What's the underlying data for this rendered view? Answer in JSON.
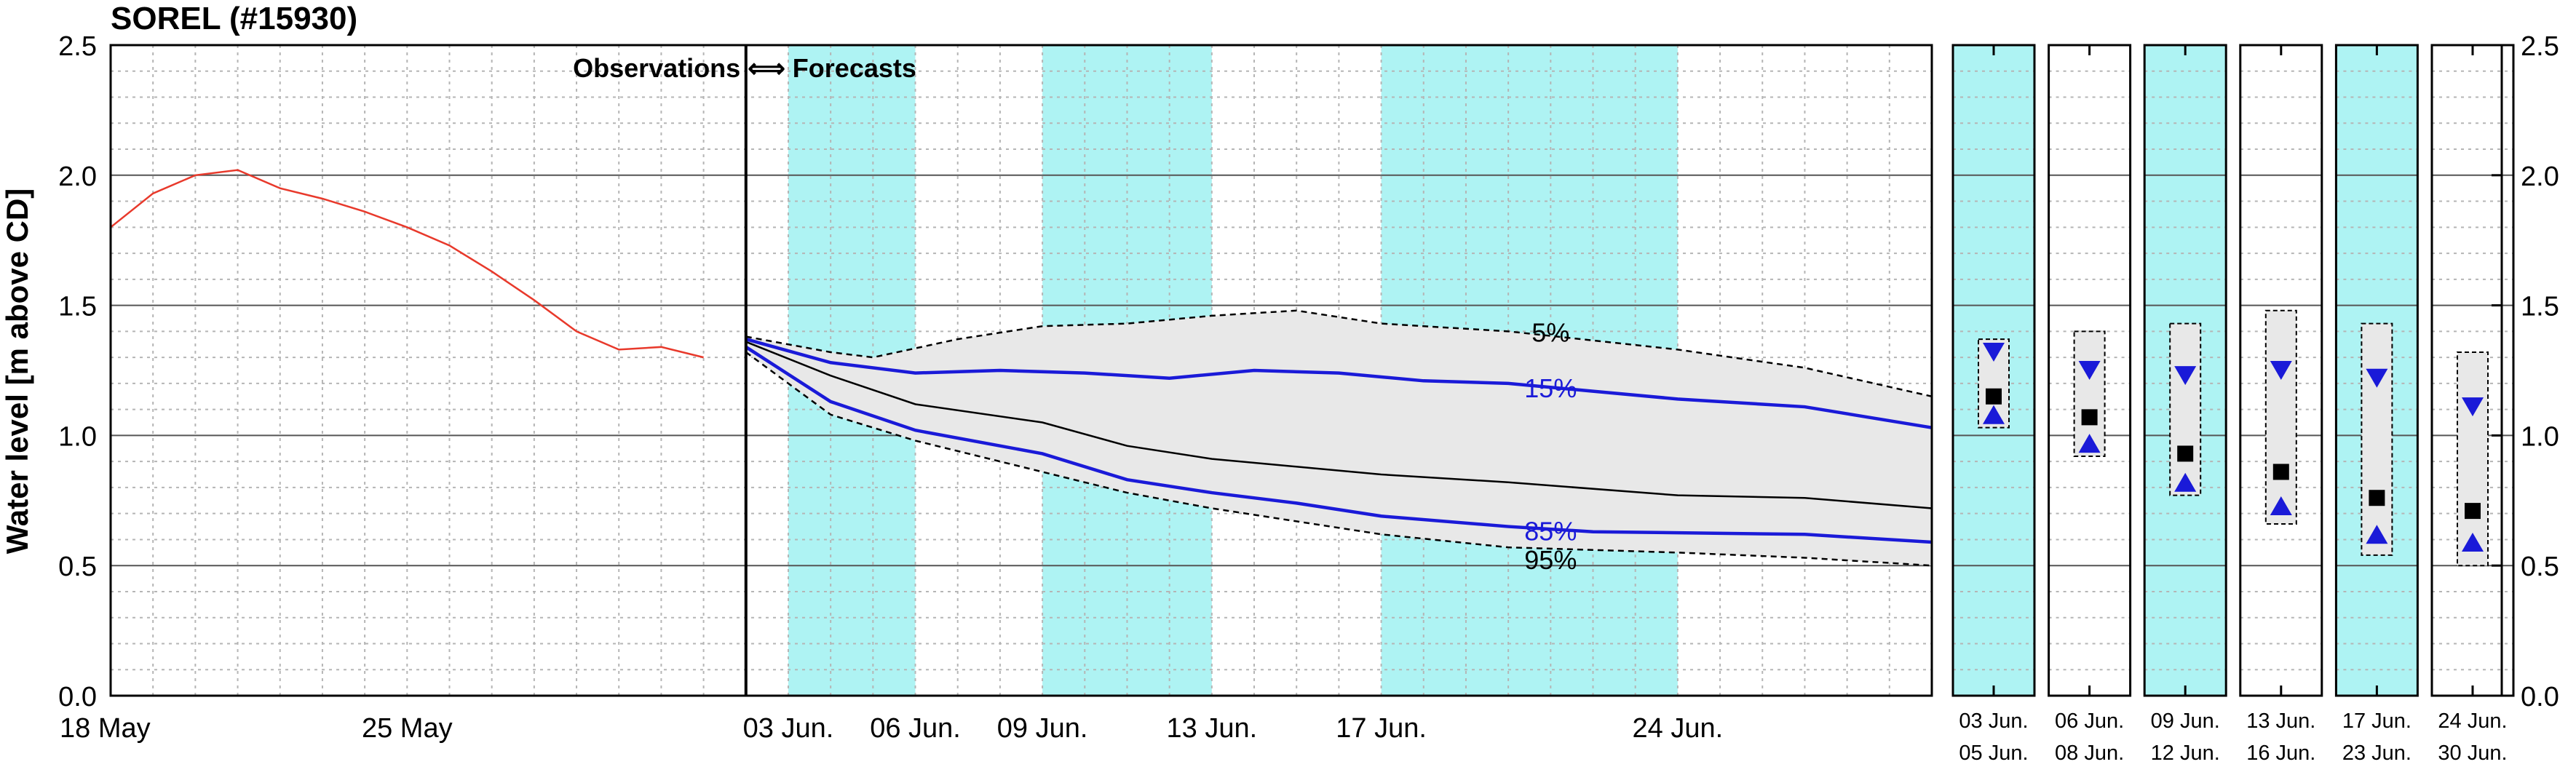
{
  "chart_data": {
    "type": "line",
    "title": "SOREL (#15930)",
    "ylabel": "Water level [m above CD]",
    "ylim": [
      0,
      2.5
    ],
    "yticks": [
      "0.0",
      "0.5",
      "1.0",
      "1.5",
      "2.0",
      "2.5"
    ],
    "x_range_days": [
      "2018-05-18",
      "2018-06-30"
    ],
    "x_tick_labels": [
      {
        "date": "2018-05-18",
        "label": "18 May"
      },
      {
        "date": "2018-05-25",
        "label": "25 May"
      },
      {
        "date": "2018-06-03",
        "label": "03 Jun."
      },
      {
        "date": "2018-06-06",
        "label": "06 Jun."
      },
      {
        "date": "2018-06-09",
        "label": "09 Jun."
      },
      {
        "date": "2018-06-13",
        "label": "13 Jun."
      },
      {
        "date": "2018-06-17",
        "label": "17 Jun."
      },
      {
        "date": "2018-06-24",
        "label": "24 Jun."
      }
    ],
    "divider_date": "2018-06-02",
    "divider_label": "Observations ⟺ Forecasts",
    "shaded_periods": [
      [
        "2018-06-03",
        "2018-06-06"
      ],
      [
        "2018-06-09",
        "2018-06-13"
      ],
      [
        "2018-06-17",
        "2018-06-24"
      ]
    ],
    "series": [
      {
        "name": "Observations",
        "color": "#e8392b",
        "points": [
          [
            "2018-05-18",
            1.8
          ],
          [
            "2018-05-19",
            1.93
          ],
          [
            "2018-05-20",
            2.0
          ],
          [
            "2018-05-21",
            2.02
          ],
          [
            "2018-05-22",
            1.95
          ],
          [
            "2018-05-23",
            1.91
          ],
          [
            "2018-05-24",
            1.86
          ],
          [
            "2018-05-25",
            1.8
          ],
          [
            "2018-05-26",
            1.73
          ],
          [
            "2018-05-27",
            1.63
          ],
          [
            "2018-05-28",
            1.52
          ],
          [
            "2018-05-29",
            1.4
          ],
          [
            "2018-05-30",
            1.33
          ],
          [
            "2018-05-31",
            1.34
          ],
          [
            "2018-06-01",
            1.3
          ]
        ]
      },
      {
        "name": "5%",
        "style": "dashed",
        "color": "#000000",
        "points": [
          [
            "2018-06-02",
            1.38
          ],
          [
            "2018-06-04",
            1.32
          ],
          [
            "2018-06-05",
            1.3
          ],
          [
            "2018-06-07",
            1.37
          ],
          [
            "2018-06-09",
            1.42
          ],
          [
            "2018-06-11",
            1.43
          ],
          [
            "2018-06-13",
            1.46
          ],
          [
            "2018-06-15",
            1.48
          ],
          [
            "2018-06-17",
            1.43
          ],
          [
            "2018-06-20",
            1.4
          ],
          [
            "2018-06-24",
            1.33
          ],
          [
            "2018-06-27",
            1.26
          ],
          [
            "2018-06-30",
            1.15
          ]
        ]
      },
      {
        "name": "15%",
        "color": "#1a1ad8",
        "points": [
          [
            "2018-06-02",
            1.37
          ],
          [
            "2018-06-04",
            1.28
          ],
          [
            "2018-06-06",
            1.24
          ],
          [
            "2018-06-08",
            1.25
          ],
          [
            "2018-06-10",
            1.24
          ],
          [
            "2018-06-12",
            1.22
          ],
          [
            "2018-06-14",
            1.25
          ],
          [
            "2018-06-16",
            1.24
          ],
          [
            "2018-06-18",
            1.21
          ],
          [
            "2018-06-20",
            1.2
          ],
          [
            "2018-06-22",
            1.17
          ],
          [
            "2018-06-24",
            1.14
          ],
          [
            "2018-06-27",
            1.11
          ],
          [
            "2018-06-30",
            1.03
          ]
        ]
      },
      {
        "name": "Median",
        "color": "#000000",
        "points": [
          [
            "2018-06-02",
            1.36
          ],
          [
            "2018-06-04",
            1.23
          ],
          [
            "2018-06-06",
            1.12
          ],
          [
            "2018-06-09",
            1.05
          ],
          [
            "2018-06-11",
            0.96
          ],
          [
            "2018-06-13",
            0.91
          ],
          [
            "2018-06-17",
            0.85
          ],
          [
            "2018-06-20",
            0.82
          ],
          [
            "2018-06-24",
            0.77
          ],
          [
            "2018-06-27",
            0.76
          ],
          [
            "2018-06-30",
            0.72
          ]
        ]
      },
      {
        "name": "85%",
        "color": "#1a1ad8",
        "points": [
          [
            "2018-06-02",
            1.34
          ],
          [
            "2018-06-04",
            1.13
          ],
          [
            "2018-06-06",
            1.02
          ],
          [
            "2018-06-09",
            0.93
          ],
          [
            "2018-06-11",
            0.83
          ],
          [
            "2018-06-13",
            0.78
          ],
          [
            "2018-06-15",
            0.74
          ],
          [
            "2018-06-17",
            0.69
          ],
          [
            "2018-06-20",
            0.65
          ],
          [
            "2018-06-22",
            0.63
          ],
          [
            "2018-06-27",
            0.62
          ],
          [
            "2018-06-30",
            0.59
          ]
        ]
      },
      {
        "name": "95%",
        "style": "dashed",
        "color": "#000000",
        "points": [
          [
            "2018-06-02",
            1.32
          ],
          [
            "2018-06-04",
            1.08
          ],
          [
            "2018-06-06",
            0.98
          ],
          [
            "2018-06-09",
            0.86
          ],
          [
            "2018-06-11",
            0.78
          ],
          [
            "2018-06-13",
            0.72
          ],
          [
            "2018-06-17",
            0.62
          ],
          [
            "2018-06-20",
            0.57
          ],
          [
            "2018-06-24",
            0.55
          ],
          [
            "2018-06-27",
            0.53
          ],
          [
            "2018-06-30",
            0.5
          ]
        ]
      }
    ],
    "summary_panels": [
      {
        "label_top": "03 Jun.",
        "label_bottom": "05 Jun.",
        "shaded": true,
        "range": [
          1.03,
          1.37
        ],
        "p15": 1.32,
        "median": 1.15,
        "p85": 1.08
      },
      {
        "label_top": "06 Jun.",
        "label_bottom": "08 Jun.",
        "shaded": false,
        "range": [
          0.92,
          1.4
        ],
        "p15": 1.25,
        "median": 1.07,
        "p85": 0.97
      },
      {
        "label_top": "09 Jun.",
        "label_bottom": "12 Jun.",
        "shaded": true,
        "range": [
          0.77,
          1.43
        ],
        "p15": 1.23,
        "median": 0.93,
        "p85": 0.82
      },
      {
        "label_top": "13 Jun.",
        "label_bottom": "16 Jun.",
        "shaded": false,
        "range": [
          0.66,
          1.48
        ],
        "p15": 1.25,
        "median": 0.86,
        "p85": 0.73
      },
      {
        "label_top": "17 Jun.",
        "label_bottom": "23 Jun.",
        "shaded": true,
        "range": [
          0.54,
          1.43
        ],
        "p15": 1.22,
        "median": 0.76,
        "p85": 0.62
      },
      {
        "label_top": "24 Jun.",
        "label_bottom": "30 Jun.",
        "shaded": false,
        "range": [
          0.5,
          1.32
        ],
        "p15": 1.11,
        "median": 0.71,
        "p85": 0.59
      }
    ],
    "colors": {
      "shade": "#aef3f3",
      "band": "#e8e8e8",
      "observed": "#e8392b",
      "percentile": "#1a1ad8"
    },
    "grid": true,
    "series_labels": {
      "p5": "5%",
      "p15": "15%",
      "p85": "85%",
      "p95": "95%"
    }
  }
}
